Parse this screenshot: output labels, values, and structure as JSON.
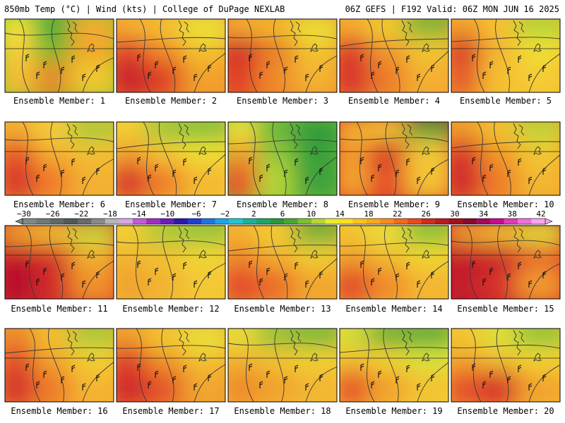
{
  "header": {
    "left": "850mb Temp (°C) | Wind (kts) | College of DuPage NEXLAB",
    "right": "06Z GEFS | F192 Valid: 06Z MON JUN 16 2025"
  },
  "colorbar": {
    "labels": [
      "−30",
      "−26",
      "−22",
      "−18",
      "−14",
      "−10",
      "−6",
      "−2",
      "2",
      "6",
      "10",
      "14",
      "18",
      "22",
      "26",
      "30",
      "34",
      "38",
      "42"
    ],
    "colors": [
      "#7d8a86",
      "#6e7a76",
      "#5f6a66",
      "#4f5a57",
      "#6a6a6a",
      "#8a8a8a",
      "#b5b5b5",
      "#d9a6e6",
      "#c45cd6",
      "#a12dc4",
      "#6b1fb8",
      "#2a1aa8",
      "#1f3ecf",
      "#1f74e0",
      "#19a6e8",
      "#1dc7d2",
      "#19b39a",
      "#1ea36a",
      "#269a3a",
      "#48a82e",
      "#7cc02a",
      "#b9d62e",
      "#ecec2a",
      "#ffe01a",
      "#ffc21a",
      "#ffa61a",
      "#ff8a1a",
      "#f56a1a",
      "#e84a1a",
      "#d42a1a",
      "#bd1a1a",
      "#a3101a",
      "#8a0a2a",
      "#a60a5a",
      "#c80a8a",
      "#e03ab8",
      "#f070d8",
      "#f8a6ee"
    ]
  },
  "members": [
    {
      "label": "Ensemble Member: 1",
      "scene": [
        [
          "#f6e53a",
          "#3fa83a",
          "#f6b032"
        ],
        [
          "#f7d23a",
          "#6fbd2e",
          "#f3a22c"
        ],
        [
          "#f6bf34",
          "#e58a2a",
          "#f2c82e"
        ]
      ]
    },
    {
      "label": "Ensemble Member: 2",
      "scene": [
        [
          "#f5b735",
          "#f3c730",
          "#e9e83a"
        ],
        [
          "#e1442a",
          "#f28f2c",
          "#f2c52e"
        ],
        [
          "#c9202a",
          "#de3f28",
          "#f2a02c"
        ]
      ]
    },
    {
      "label": "Ensemble Member: 3",
      "scene": [
        [
          "#f6b432",
          "#f3c12e",
          "#e8e539"
        ],
        [
          "#cf2c29",
          "#e97a2b",
          "#f2c52e"
        ],
        [
          "#e03e28",
          "#f08a2b",
          "#f4b232"
        ]
      ]
    },
    {
      "label": "Ensemble Member: 4",
      "scene": [
        [
          "#f6b432",
          "#f0d52f",
          "#5db53a"
        ],
        [
          "#dc3a29",
          "#f19a2d",
          "#f2c82f"
        ],
        [
          "#d8302a",
          "#ec7a2b",
          "#f4b030"
        ]
      ]
    },
    {
      "label": "Ensemble Member: 5",
      "scene": [
        [
          "#f3a02f",
          "#f6c532",
          "#a9d43a"
        ],
        [
          "#d83529",
          "#f3b432",
          "#f1e033"
        ],
        [
          "#e65a2a",
          "#f4c030",
          "#f4cc34"
        ]
      ]
    },
    {
      "label": "Ensemble Member: 6",
      "scene": [
        [
          "#f4b231",
          "#f3d13a",
          "#9dcd3a"
        ],
        [
          "#e6552a",
          "#f4b232",
          "#f2c132"
        ],
        [
          "#d8362a",
          "#f07a2a",
          "#f3b030"
        ]
      ]
    },
    {
      "label": "Ensemble Member: 7",
      "scene": [
        [
          "#f3d134",
          "#8ac63a",
          "#6cbd3b"
        ],
        [
          "#f1a12d",
          "#f4cc34",
          "#f1e233"
        ],
        [
          "#d9392a",
          "#ef7d2b",
          "#f4b832"
        ]
      ]
    },
    {
      "label": "Ensemble Member: 8",
      "scene": [
        [
          "#eee63a",
          "#64b73a",
          "#2f9a3a"
        ],
        [
          "#f1a42d",
          "#8cc53a",
          "#3aa23a"
        ],
        [
          "#e9532a",
          "#b4d738",
          "#3ea23a"
        ]
      ]
    },
    {
      "label": "Ensemble Member: 9",
      "scene": [
        [
          "#f3b232",
          "#f4cf34",
          "#3b9f3a"
        ],
        [
          "#f29b2d",
          "#d62d29",
          "#f3c934"
        ],
        [
          "#f3a42e",
          "#e54c29",
          "#f3c234"
        ]
      ]
    },
    {
      "label": "Ensemble Member: 10",
      "scene": [
        [
          "#f1a02d",
          "#f3c932",
          "#b4d73a"
        ],
        [
          "#d8312a",
          "#f09a2c",
          "#f3c833"
        ],
        [
          "#d0272a",
          "#ee7c2b",
          "#f3b731"
        ]
      ]
    },
    {
      "label": "Ensemble Member: 11",
      "scene": [
        [
          "#f2a72e",
          "#f2c733",
          "#bfd83a"
        ],
        [
          "#c3172a",
          "#d6322a",
          "#f2b232"
        ],
        [
          "#b5102a",
          "#d22a2a",
          "#f0902c"
        ]
      ]
    },
    {
      "label": "Ensemble Member: 12",
      "scene": [
        [
          "#f2d332",
          "#9bcb3a",
          "#7fc23a"
        ],
        [
          "#f2b532",
          "#f2c232",
          "#f3d734"
        ],
        [
          "#f0a22e",
          "#f2b432",
          "#f3c834"
        ]
      ]
    },
    {
      "label": "Ensemble Member: 13",
      "scene": [
        [
          "#f3b532",
          "#f2d033",
          "#4aaa3a"
        ],
        [
          "#ef8a2c",
          "#f2b232",
          "#f2d133"
        ],
        [
          "#e3492a",
          "#ec6c2b",
          "#f2a52e"
        ]
      ]
    },
    {
      "label": "Ensemble Member: 14",
      "scene": [
        [
          "#f2c833",
          "#e6e23a",
          "#6fbe3a"
        ],
        [
          "#f1a02d",
          "#f2bd32",
          "#f2d933"
        ],
        [
          "#e24a2a",
          "#f08a2c",
          "#f3b532"
        ]
      ]
    },
    {
      "label": "Ensemble Member: 15",
      "scene": [
        [
          "#f0a12d",
          "#f3c533",
          "#dde63a"
        ],
        [
          "#c61d2a",
          "#c9212a",
          "#e85a2a"
        ],
        [
          "#c31b2a",
          "#d6322a",
          "#f19a2d"
        ]
      ]
    },
    {
      "label": "Ensemble Member: 16",
      "scene": [
        [
          "#ee8a2c",
          "#f3c532",
          "#9ccb3a"
        ],
        [
          "#e3502a",
          "#f2a62e",
          "#f2d233"
        ],
        [
          "#d5302a",
          "#ee7a2b",
          "#f4b532"
        ]
      ]
    },
    {
      "label": "Ensemble Member: 17",
      "scene": [
        [
          "#f2a52e",
          "#f3cd33",
          "#e7e53a"
        ],
        [
          "#de3f2a",
          "#f09a2c",
          "#f3c232"
        ],
        [
          "#d0272a",
          "#e5532a",
          "#f2a52e"
        ]
      ]
    },
    {
      "label": "Ensemble Member: 18",
      "scene": [
        [
          "#e5e23a",
          "#7bc13a",
          "#5bb53a"
        ],
        [
          "#f2b232",
          "#f3c533",
          "#f2d333"
        ],
        [
          "#ee892b",
          "#f1a22d",
          "#f3b532"
        ]
      ]
    },
    {
      "label": "Ensemble Member: 19",
      "scene": [
        [
          "#c9df3a",
          "#46a83a",
          "#3aa23a"
        ],
        [
          "#f3c233",
          "#f2d633",
          "#d7e53a"
        ],
        [
          "#e6552a",
          "#f1a02d",
          "#f3c233"
        ]
      ]
    },
    {
      "label": "Ensemble Member: 20",
      "scene": [
        [
          "#f2c832",
          "#d6e53a",
          "#7fc23a"
        ],
        [
          "#f1a62d",
          "#f2c232",
          "#f2d833"
        ],
        [
          "#e6502a",
          "#d6302a",
          "#f3a22e"
        ]
      ]
    }
  ]
}
